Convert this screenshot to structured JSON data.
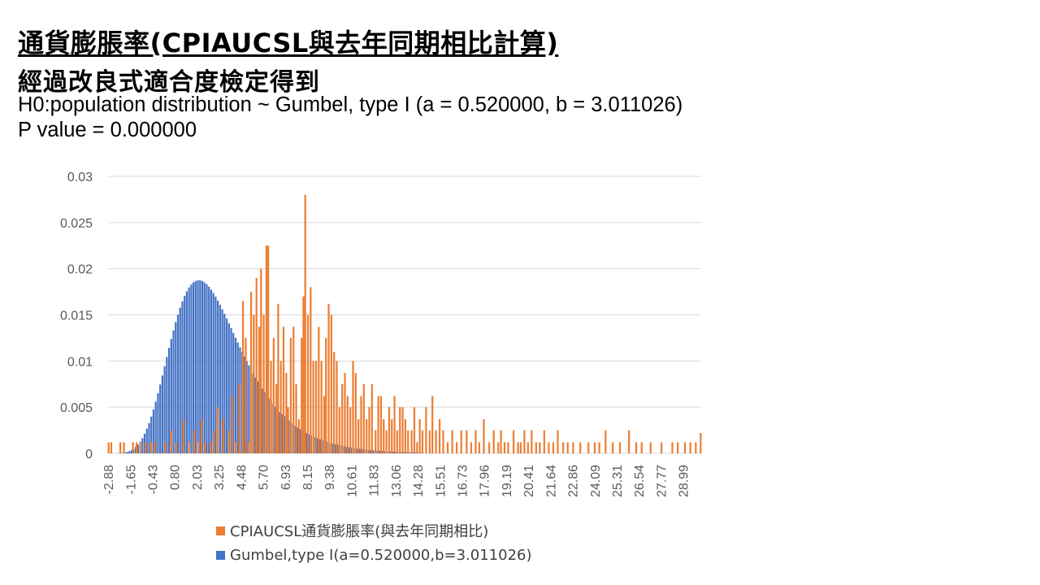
{
  "slide": {
    "title": "通貨膨脹率(CPIAUCSL與去年同期相比計算)",
    "subtitle": "經過改良式適合度檢定得到",
    "hypothesis": "H0:population distribution ~ Gumbel, type I (a = 0.520000, b = 3.011026) P value = 0.000000"
  },
  "colors": {
    "empirical": "#ED7D31",
    "fitted": "#4472C4",
    "grid": "#D9D9D9",
    "axis_text": "#595959"
  },
  "chart_data": {
    "type": "bar",
    "title": "",
    "xlabel": "",
    "ylabel": "",
    "ylim": [
      0,
      0.03
    ],
    "y_ticks": [
      "0",
      "0.005",
      "0.01",
      "0.015",
      "0.02",
      "0.025",
      "0.03"
    ],
    "grid": true,
    "legend_position": "bottom",
    "x_range": [
      -2.88,
      30.0
    ],
    "x_tick_labels": [
      "-2.88",
      "-1.65",
      "-0.43",
      "0.80",
      "2.03",
      "3.25",
      "4.48",
      "5.70",
      "6.93",
      "8.15",
      "9.38",
      "10.61",
      "11.83",
      "13.06",
      "14.28",
      "15.51",
      "16.73",
      "17.96",
      "19.19",
      "20.41",
      "21.64",
      "22.86",
      "24.09",
      "25.31",
      "26.54",
      "27.77",
      "28.99"
    ],
    "series": [
      {
        "name": "CPIAUCSL通貨膨脹率(與去年同期相比)",
        "color": "#ED7D31",
        "points": [
          [
            -2.85,
            0.0012
          ],
          [
            -2.7,
            0.0012
          ],
          [
            -2.2,
            0.0012
          ],
          [
            -2.0,
            0.0012
          ],
          [
            -1.5,
            0.0012
          ],
          [
            -1.3,
            0.0012
          ],
          [
            -1.1,
            0.0012
          ],
          [
            -0.8,
            0.0012
          ],
          [
            -0.5,
            0.0012
          ],
          [
            -0.3,
            0.0012
          ],
          [
            0.3,
            0.0012
          ],
          [
            0.6,
            0.0025
          ],
          [
            0.9,
            0.0012
          ],
          [
            1.3,
            0.0037
          ],
          [
            1.6,
            0.0012
          ],
          [
            1.9,
            0.0025
          ],
          [
            2.1,
            0.0012
          ],
          [
            2.3,
            0.0037
          ],
          [
            2.5,
            0.0012
          ],
          [
            2.8,
            0.0012
          ],
          [
            3.0,
            0.0025
          ],
          [
            3.2,
            0.005
          ],
          [
            3.5,
            0.0037
          ],
          [
            3.8,
            0.0025
          ],
          [
            4.0,
            0.0062
          ],
          [
            4.2,
            0.0012
          ],
          [
            4.4,
            0.0075
          ],
          [
            4.6,
            0.0165
          ],
          [
            4.75,
            0.0125
          ],
          [
            4.9,
            0.0012
          ],
          [
            5.05,
            0.0175
          ],
          [
            5.2,
            0.015
          ],
          [
            5.35,
            0.019
          ],
          [
            5.5,
            0.0137
          ],
          [
            5.6,
            0.02
          ],
          [
            5.75,
            0.015
          ],
          [
            5.9,
            0.0225
          ],
          [
            6.0,
            0.0225
          ],
          [
            6.15,
            0.01
          ],
          [
            6.3,
            0.0125
          ],
          [
            6.45,
            0.0075
          ],
          [
            6.55,
            0.0162
          ],
          [
            6.7,
            0.01
          ],
          [
            6.85,
            0.0137
          ],
          [
            7.0,
            0.0087
          ],
          [
            7.1,
            0.005
          ],
          [
            7.25,
            0.0125
          ],
          [
            7.4,
            0.0137
          ],
          [
            7.55,
            0.0075
          ],
          [
            7.7,
            0.0037
          ],
          [
            7.85,
            0.0125
          ],
          [
            7.95,
            0.017
          ],
          [
            8.05,
            0.028
          ],
          [
            8.2,
            0.015
          ],
          [
            8.35,
            0.018
          ],
          [
            8.5,
            0.01
          ],
          [
            8.65,
            0.01
          ],
          [
            8.8,
            0.0137
          ],
          [
            8.95,
            0.01
          ],
          [
            9.1,
            0.0062
          ],
          [
            9.2,
            0.0125
          ],
          [
            9.35,
            0.0162
          ],
          [
            9.5,
            0.015
          ],
          [
            9.65,
            0.011
          ],
          [
            9.8,
            0.01
          ],
          [
            9.95,
            0.005
          ],
          [
            10.1,
            0.0075
          ],
          [
            10.25,
            0.0087
          ],
          [
            10.4,
            0.0062
          ],
          [
            10.55,
            0.005
          ],
          [
            10.7,
            0.01
          ],
          [
            10.85,
            0.0087
          ],
          [
            11.0,
            0.0037
          ],
          [
            11.15,
            0.0062
          ],
          [
            11.3,
            0.0075
          ],
          [
            11.45,
            0.0037
          ],
          [
            11.6,
            0.005
          ],
          [
            11.75,
            0.0075
          ],
          [
            11.95,
            0.0025
          ],
          [
            12.1,
            0.0062
          ],
          [
            12.25,
            0.0062
          ],
          [
            12.4,
            0.0037
          ],
          [
            12.55,
            0.0025
          ],
          [
            12.7,
            0.005
          ],
          [
            12.85,
            0.0037
          ],
          [
            13.0,
            0.0062
          ],
          [
            13.15,
            0.0025
          ],
          [
            13.3,
            0.005
          ],
          [
            13.45,
            0.005
          ],
          [
            13.6,
            0.0037
          ],
          [
            13.75,
            0.0025
          ],
          [
            13.95,
            0.0025
          ],
          [
            14.1,
            0.005
          ],
          [
            14.25,
            0.0012
          ],
          [
            14.4,
            0.0037
          ],
          [
            14.55,
            0.0025
          ],
          [
            14.75,
            0.005
          ],
          [
            14.95,
            0.0025
          ],
          [
            15.1,
            0.0062
          ],
          [
            15.3,
            0.0025
          ],
          [
            15.5,
            0.0037
          ],
          [
            15.7,
            0.0025
          ],
          [
            15.95,
            0.0012
          ],
          [
            16.2,
            0.0025
          ],
          [
            16.45,
            0.0012
          ],
          [
            16.7,
            0.0025
          ],
          [
            17.0,
            0.0025
          ],
          [
            17.25,
            0.0012
          ],
          [
            17.5,
            0.0025
          ],
          [
            17.7,
            0.0012
          ],
          [
            17.95,
            0.0037
          ],
          [
            18.25,
            0.0012
          ],
          [
            18.5,
            0.0025
          ],
          [
            18.75,
            0.0012
          ],
          [
            18.9,
            0.0025
          ],
          [
            19.1,
            0.0012
          ],
          [
            19.3,
            0.0012
          ],
          [
            19.6,
            0.0025
          ],
          [
            19.85,
            0.0012
          ],
          [
            20.0,
            0.0012
          ],
          [
            20.2,
            0.0025
          ],
          [
            20.4,
            0.0012
          ],
          [
            20.6,
            0.0025
          ],
          [
            20.85,
            0.0012
          ],
          [
            21.05,
            0.0012
          ],
          [
            21.3,
            0.0025
          ],
          [
            21.55,
            0.0012
          ],
          [
            21.8,
            0.0012
          ],
          [
            22.05,
            0.0025
          ],
          [
            22.35,
            0.0012
          ],
          [
            22.6,
            0.0012
          ],
          [
            22.9,
            0.0012
          ],
          [
            23.3,
            0.0012
          ],
          [
            23.75,
            0.0012
          ],
          [
            24.1,
            0.0012
          ],
          [
            24.35,
            0.0012
          ],
          [
            24.7,
            0.0025
          ],
          [
            25.1,
            0.0012
          ],
          [
            25.5,
            0.0012
          ],
          [
            26.0,
            0.0025
          ],
          [
            26.4,
            0.0012
          ],
          [
            26.7,
            0.0012
          ],
          [
            27.2,
            0.0012
          ],
          [
            27.8,
            0.0012
          ],
          [
            28.4,
            0.0012
          ],
          [
            28.7,
            0.0012
          ],
          [
            29.1,
            0.0012
          ],
          [
            29.4,
            0.0012
          ],
          [
            29.7,
            0.0012
          ],
          [
            29.97,
            0.0022
          ]
        ]
      },
      {
        "name": "Gumbel,type I(a=0.520000,b=3.011026)",
        "color": "#4472C4",
        "distribution": {
          "family": "Gumbel, type I",
          "a": 0.52,
          "b": 3.011026
        },
        "x_start": -2.82,
        "x_end": 14.6,
        "x_step": 0.123
      }
    ]
  }
}
